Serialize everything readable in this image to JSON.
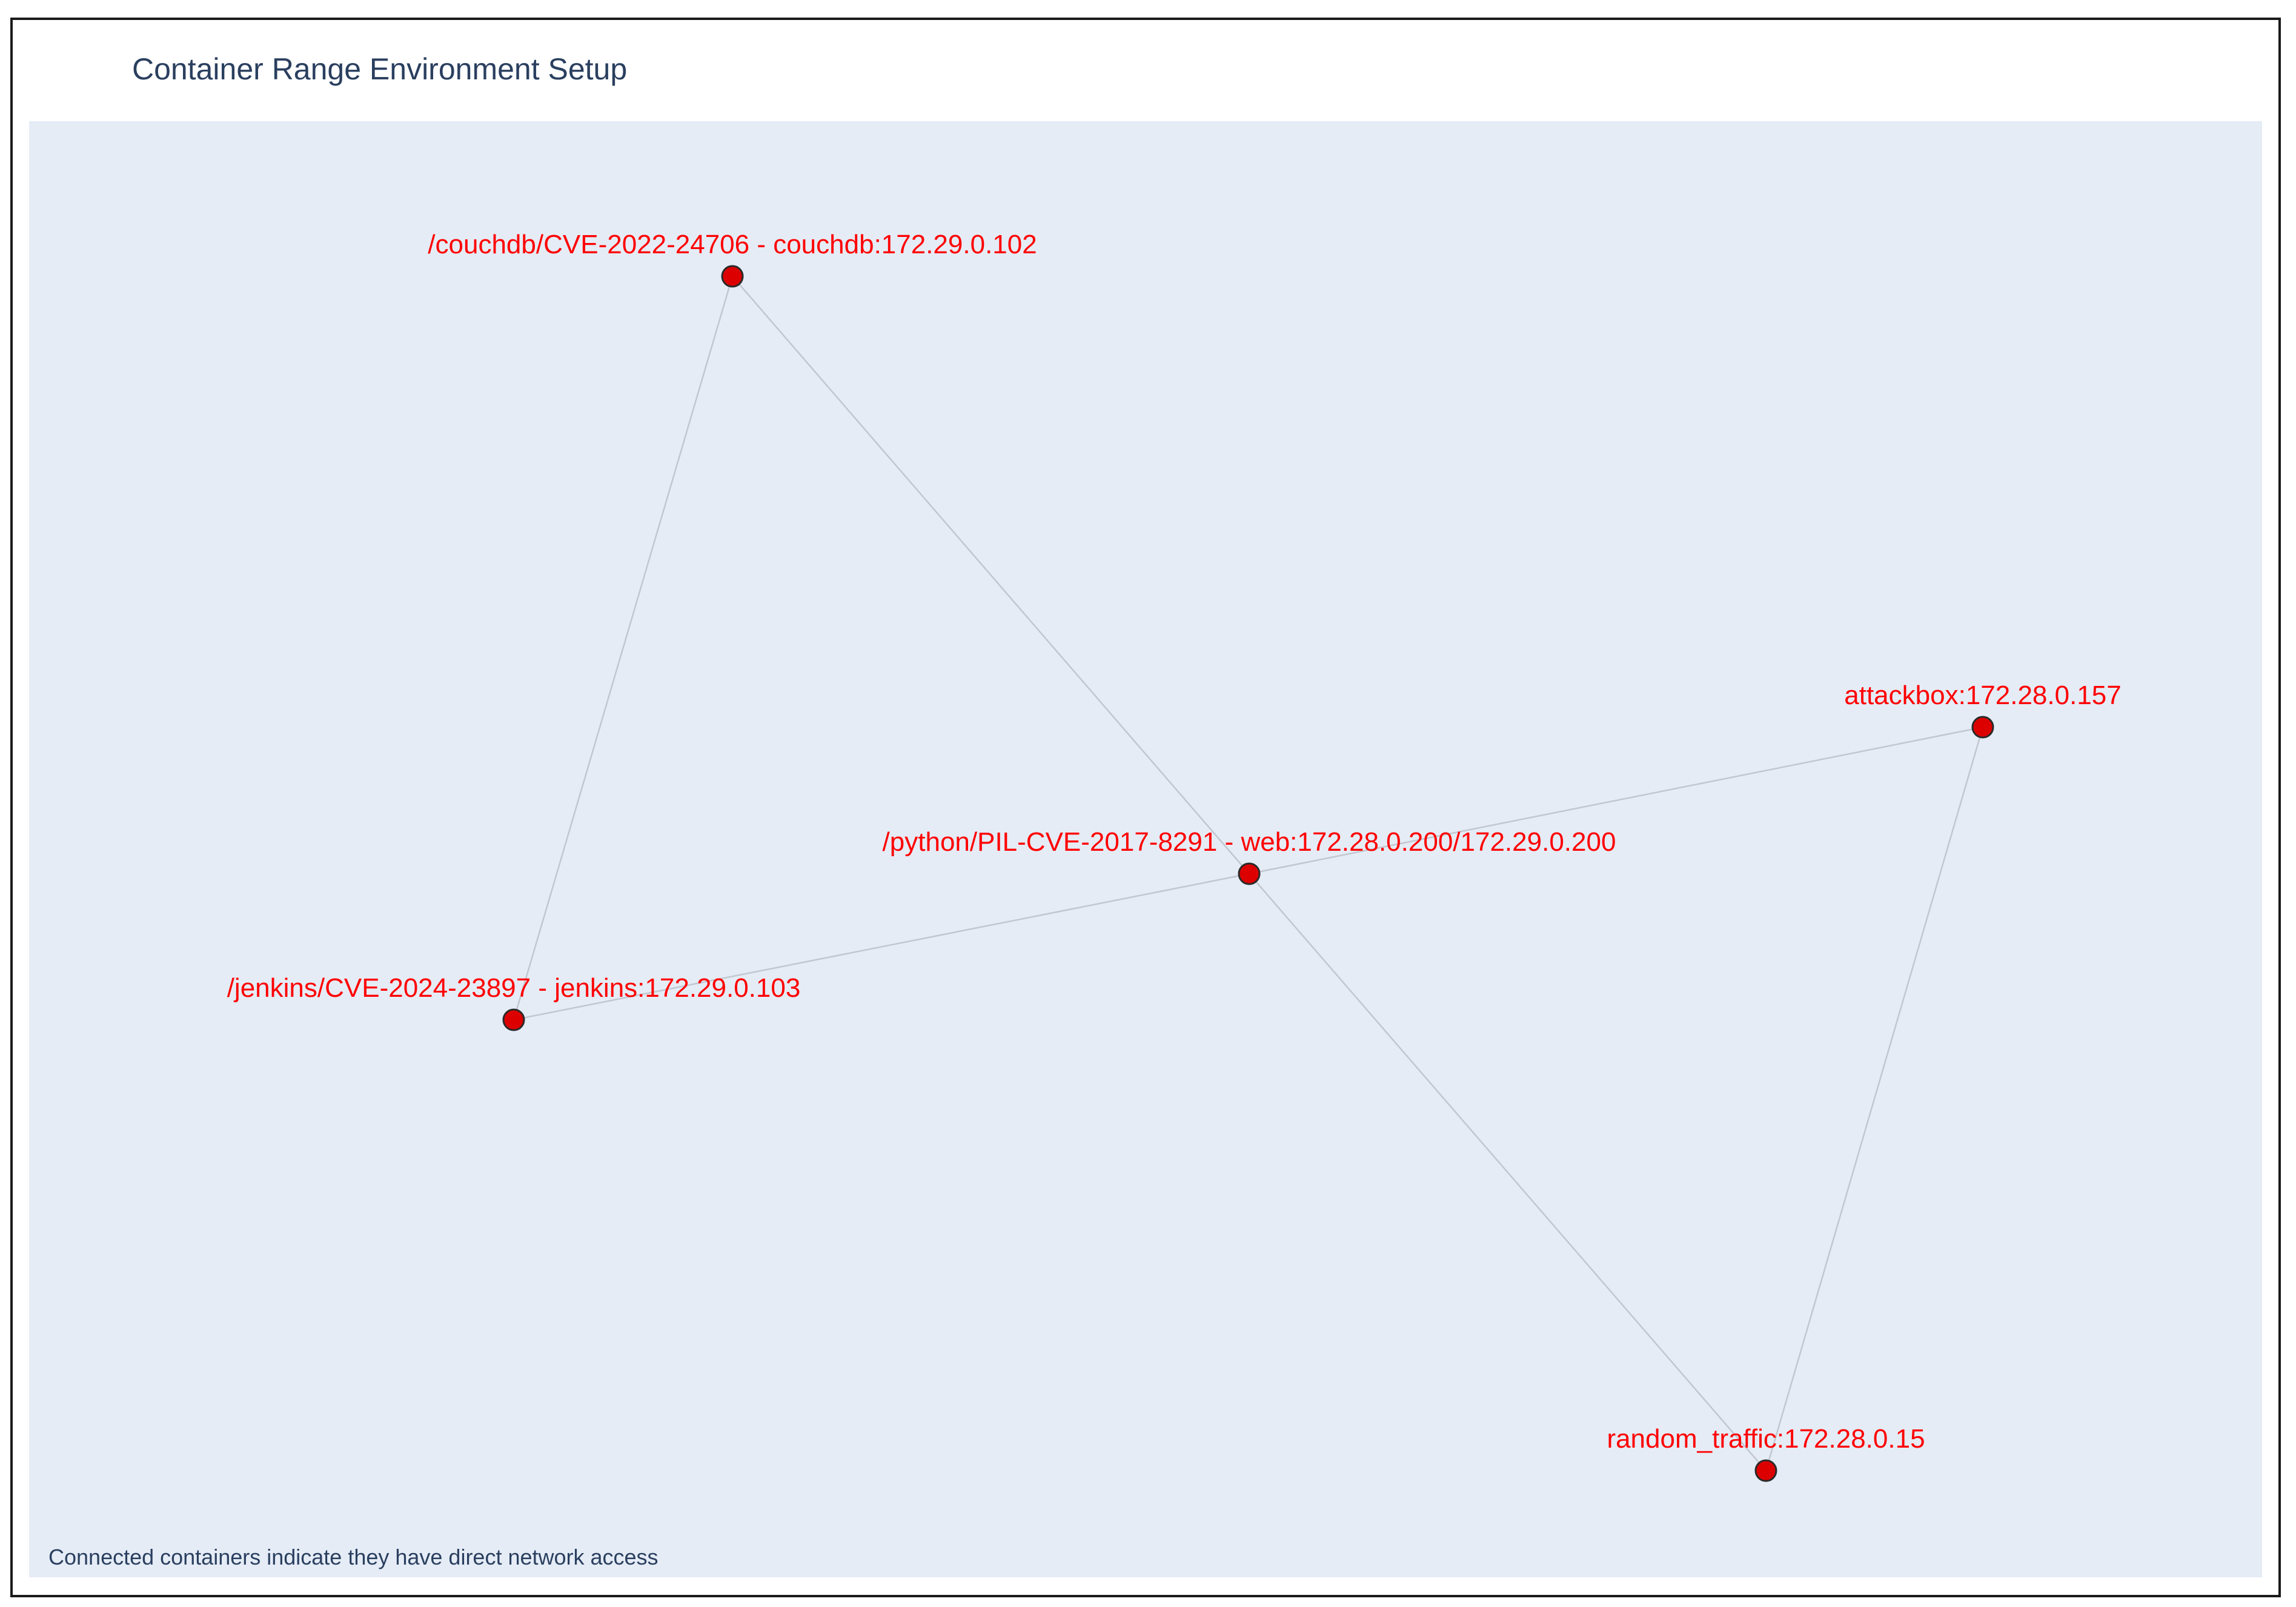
{
  "title": "Container Range Environment Setup",
  "annotation": "Connected containers indicate they have direct network access",
  "nodes": [
    {
      "label": "/couchdb/CVE-2022-24706 - couchdb:172.29.0.102"
    },
    {
      "label": "attackbox:172.28.0.157"
    },
    {
      "label": "/python/PIL-CVE-2017-8291 - web:172.28.0.200/172.29.0.200"
    },
    {
      "label": "/jenkins/CVE-2024-23897 - jenkins:172.29.0.103"
    },
    {
      "label": "random_traffic:172.28.0.15"
    }
  ],
  "edges": [
    [
      0,
      3
    ],
    [
      0,
      2
    ],
    [
      3,
      2
    ],
    [
      2,
      1
    ],
    [
      2,
      4
    ],
    [
      1,
      4
    ]
  ],
  "colors": {
    "plot_bg": "#e5ecf6",
    "edge": "#c2c7cf",
    "node_fill": "#dd0000",
    "node_outline": "#2b2b2b",
    "label": "#ff0000",
    "frame": "#1a1a1a"
  }
}
